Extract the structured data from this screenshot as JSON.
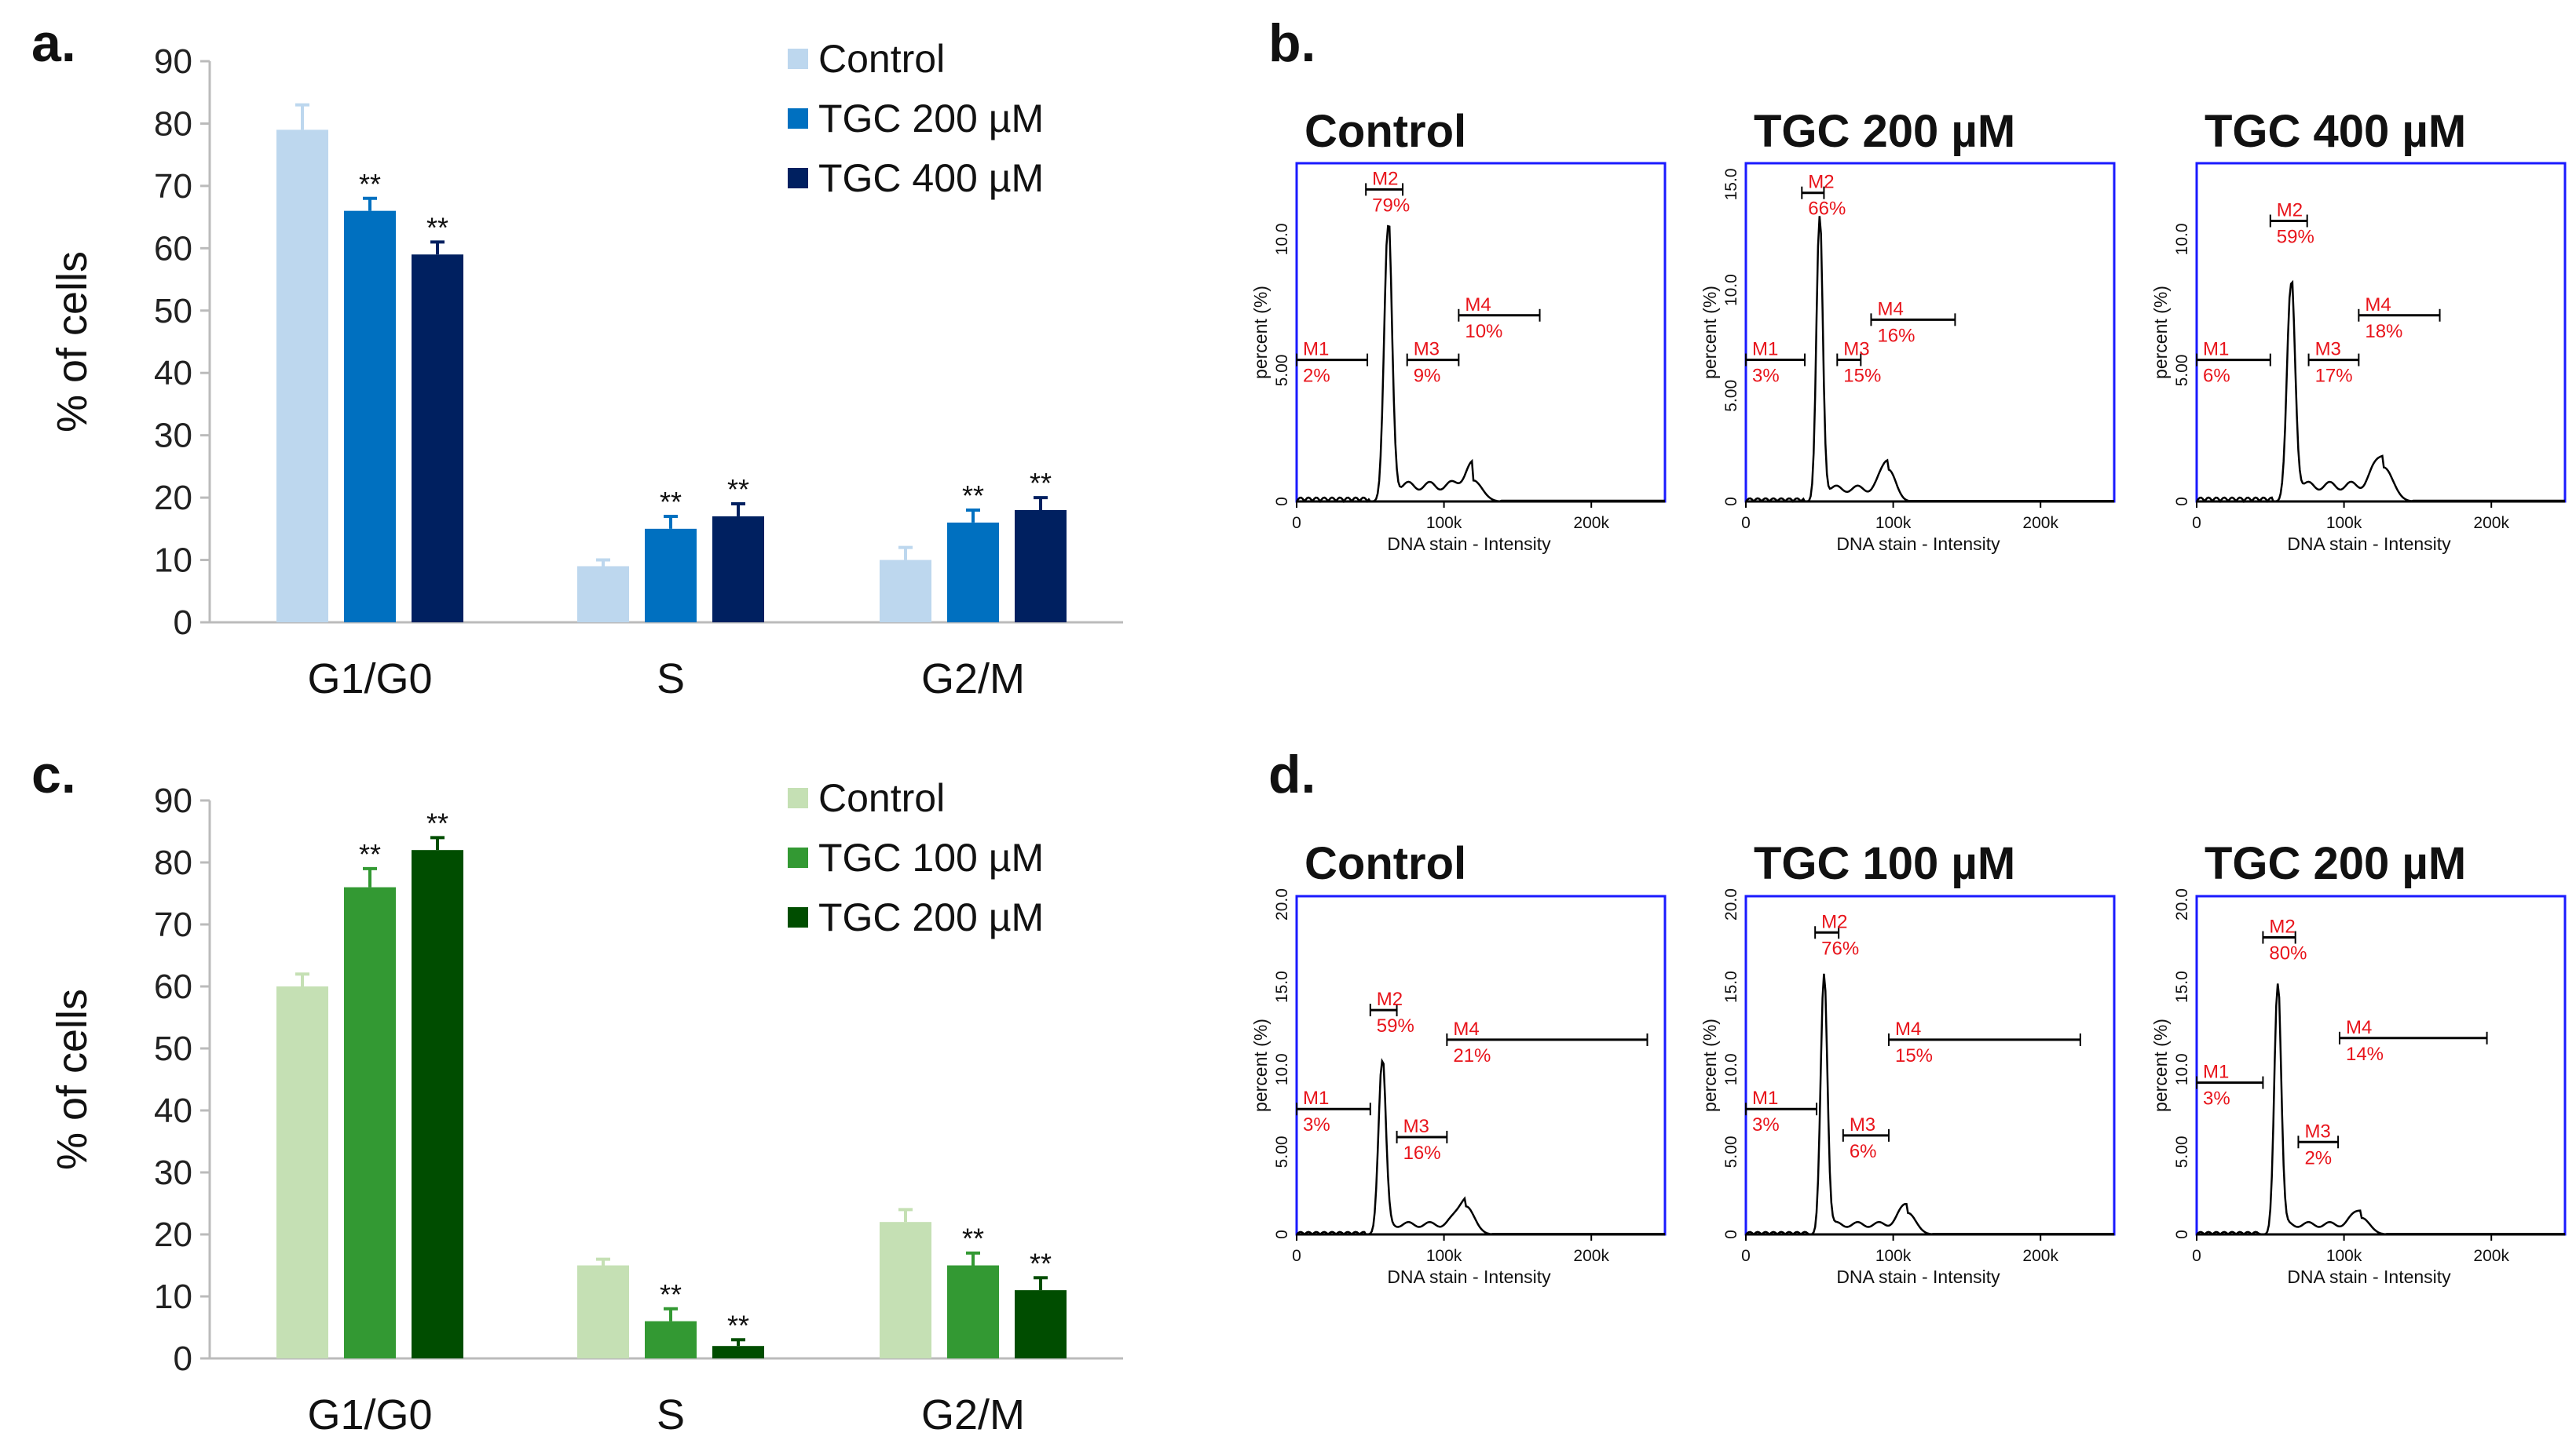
{
  "chart_data": [
    {
      "panel": "a.",
      "type": "bar",
      "ylabel": "%  of cells",
      "ylim": [
        0,
        90
      ],
      "yticks": [
        0,
        10,
        20,
        30,
        40,
        50,
        60,
        70,
        80,
        90
      ],
      "categories": [
        "G1/G0",
        "S",
        "G2/M"
      ],
      "legend_position": "top-right",
      "series": [
        {
          "name": "Control",
          "color": "#bdd7ee",
          "values": [
            79,
            9,
            10
          ],
          "errors": [
            4,
            1,
            2
          ],
          "sig": [
            "",
            "",
            ""
          ]
        },
        {
          "name": "TGC 200 µM",
          "color": "#0070c0",
          "values": [
            66,
            15,
            16
          ],
          "errors": [
            2,
            2,
            2
          ],
          "sig": [
            "**",
            "**",
            "**"
          ]
        },
        {
          "name": "TGC 400 µM",
          "color": "#002060",
          "values": [
            59,
            17,
            18
          ],
          "errors": [
            2,
            2,
            2
          ],
          "sig": [
            "**",
            "**",
            "**"
          ]
        }
      ]
    },
    {
      "panel": "c.",
      "type": "bar",
      "ylabel": "%  of cells",
      "ylim": [
        0,
        90
      ],
      "yticks": [
        0,
        10,
        20,
        30,
        40,
        50,
        60,
        70,
        80,
        90
      ],
      "categories": [
        "G1/G0",
        "S",
        "G2/M"
      ],
      "legend_position": "top-right",
      "series": [
        {
          "name": "Control",
          "color": "#c5e0b4",
          "values": [
            60,
            15,
            22
          ],
          "errors": [
            2,
            1,
            2
          ],
          "sig": [
            "",
            "",
            ""
          ]
        },
        {
          "name": "TGC 100 µM",
          "color": "#339933",
          "values": [
            76,
            6,
            15
          ],
          "errors": [
            3,
            2,
            2
          ],
          "sig": [
            "**",
            "**",
            "**"
          ]
        },
        {
          "name": "TGC 200 µM",
          "color": "#004d00",
          "values": [
            82,
            2,
            11
          ],
          "errors": [
            2,
            1,
            2
          ],
          "sig": [
            "**",
            "**",
            "**"
          ]
        }
      ]
    },
    {
      "panel": "b.",
      "type": "line",
      "xlabel": "DNA stain - Intensity",
      "ylabel": "percent (%)",
      "xlim": [
        0,
        250000
      ],
      "xticks": [
        "0",
        "100k",
        "200k"
      ],
      "histograms": [
        {
          "title": "Control",
          "ymax": 12.9,
          "yticks": [
            "0",
            "5.00",
            "10.0"
          ],
          "g1": [
            62000,
            10.5
          ],
          "g2": [
            120000,
            0.8
          ],
          "markers": [
            {
              "name": "M1",
              "pct": "2%",
              "range": [
                0,
                48000
              ],
              "y": 5.4
            },
            {
              "name": "M2",
              "pct": "79%",
              "range": [
                47000,
                72000
              ],
              "y": 11.9
            },
            {
              "name": "M3",
              "pct": "9%",
              "range": [
                75000,
                110000
              ],
              "y": 5.4
            },
            {
              "name": "M4",
              "pct": "10%",
              "range": [
                110000,
                165000
              ],
              "y": 7.1
            }
          ]
        },
        {
          "title": "TGC 200 µM",
          "ymax": 16,
          "yticks": [
            "0",
            "5.00",
            "10.0",
            "15.0"
          ],
          "g1": [
            50000,
            13.5
          ],
          "g2": [
            97000,
            1.5
          ],
          "markers": [
            {
              "name": "M1",
              "pct": "3%",
              "range": [
                0,
                40000
              ],
              "y": 6.7
            },
            {
              "name": "M2",
              "pct": "66%",
              "range": [
                38000,
                53000
              ],
              "y": 14.6
            },
            {
              "name": "M3",
              "pct": "15%",
              "range": [
                62000,
                78000
              ],
              "y": 6.7
            },
            {
              "name": "M4",
              "pct": "16%",
              "range": [
                85000,
                142000
              ],
              "y": 8.6
            }
          ]
        },
        {
          "title": "TGC 400 µM",
          "ymax": 12.9,
          "yticks": [
            "0",
            "5.00",
            "10.0"
          ],
          "g1": [
            64000,
            8.3
          ],
          "g2": [
            127000,
            1.3
          ],
          "markers": [
            {
              "name": "M1",
              "pct": "6%",
              "range": [
                0,
                50000
              ],
              "y": 5.4
            },
            {
              "name": "M2",
              "pct": "59%",
              "range": [
                50000,
                75000
              ],
              "y": 10.7
            },
            {
              "name": "M3",
              "pct": "17%",
              "range": [
                76000,
                110000
              ],
              "y": 5.4
            },
            {
              "name": "M4",
              "pct": "18%",
              "range": [
                110000,
                165000
              ],
              "y": 7.1
            }
          ]
        }
      ]
    },
    {
      "panel": "d.",
      "type": "line",
      "xlabel": "DNA stain - Intensity",
      "ylabel": "percent (%)",
      "xlim": [
        0,
        250000
      ],
      "xticks": [
        "0",
        "100k",
        "200k"
      ],
      "histograms": [
        {
          "title": "Control",
          "ymax": 20.5,
          "yticks": [
            "0",
            "5.00",
            "10.0",
            "15.0",
            "20.0"
          ],
          "g1": [
            58000,
            10.5
          ],
          "g2": [
            115000,
            1.7
          ],
          "markers": [
            {
              "name": "M1",
              "pct": "3%",
              "range": [
                0,
                50000
              ],
              "y": 7.6
            },
            {
              "name": "M2",
              "pct": "59%",
              "range": [
                50000,
                68000
              ],
              "y": 13.6
            },
            {
              "name": "M3",
              "pct": "16%",
              "range": [
                68000,
                102000
              ],
              "y": 5.9
            },
            {
              "name": "M4",
              "pct": "21%",
              "range": [
                102000,
                238000
              ],
              "y": 11.8
            }
          ]
        },
        {
          "title": "TGC 100 µM",
          "ymax": 20.5,
          "yticks": [
            "0",
            "5.00",
            "10.0",
            "15.0",
            "20.0"
          ],
          "g1": [
            53000,
            15.8
          ],
          "g2": [
            110000,
            1.3
          ],
          "markers": [
            {
              "name": "M1",
              "pct": "3%",
              "range": [
                0,
                48000
              ],
              "y": 7.6
            },
            {
              "name": "M2",
              "pct": "76%",
              "range": [
                47000,
                63000
              ],
              "y": 18.3
            },
            {
              "name": "M3",
              "pct": "6%",
              "range": [
                66000,
                97000
              ],
              "y": 6.0
            },
            {
              "name": "M4",
              "pct": "15%",
              "range": [
                97000,
                227000
              ],
              "y": 11.8
            }
          ]
        },
        {
          "title": "TGC 200 µM",
          "ymax": 20.5,
          "yticks": [
            "0",
            "5.00",
            "10.0",
            "15.0",
            "20.0"
          ],
          "g1": [
            55000,
            15.2
          ],
          "g2": [
            112000,
            1.0
          ],
          "markers": [
            {
              "name": "M1",
              "pct": "3%",
              "range": [
                0,
                45000
              ],
              "y": 9.2
            },
            {
              "name": "M2",
              "pct": "80%",
              "range": [
                45000,
                67000
              ],
              "y": 18.0
            },
            {
              "name": "M3",
              "pct": "2%",
              "range": [
                69000,
                96000
              ],
              "y": 5.6
            },
            {
              "name": "M4",
              "pct": "14%",
              "range": [
                97000,
                197000
              ],
              "y": 11.9
            }
          ]
        }
      ]
    }
  ]
}
